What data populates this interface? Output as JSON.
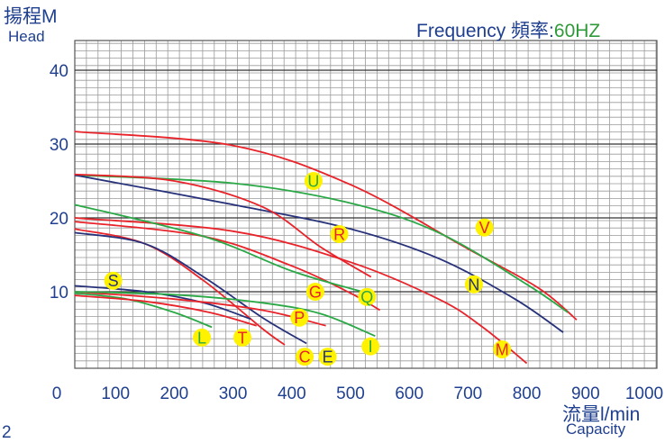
{
  "header": {
    "y_title_cn": "揚程M",
    "y_title_en": "Head",
    "frequency_label": "Frequency 頻率:",
    "frequency_value": "60HZ",
    "x_title_cn": "流量l/min",
    "x_title_en": "Capacity",
    "corner_text": "2"
  },
  "colors": {
    "red": "#e8232a",
    "green": "#2aa845",
    "navy": "#26317a",
    "axis_text": "#1f3f8f",
    "grid": "#9a9a9a",
    "badge": "#fff200"
  },
  "chart_data": {
    "type": "line",
    "xlim": [
      0,
      1000
    ],
    "ylim": [
      0,
      45
    ],
    "x_ticks": [
      0,
      100,
      200,
      300,
      400,
      500,
      600,
      700,
      800,
      900,
      1000
    ],
    "y_ticks": [
      10,
      20,
      30,
      40
    ],
    "grid": true,
    "series": [
      {
        "name": "V",
        "color": "red",
        "x": [
          30,
          300,
          500,
          700,
          820,
          885
        ],
        "y": [
          31.7,
          29.8,
          24.5,
          15.8,
          10.5,
          6.2
        ],
        "label_at": [
          728,
          18.7
        ],
        "label_color": "red"
      },
      {
        "name": "U",
        "color": "green",
        "x": [
          30,
          300,
          500,
          650,
          800,
          870
        ],
        "y": [
          25.8,
          24.7,
          22.0,
          18.0,
          11.0,
          7.2
        ],
        "label_at": [
          437,
          25.0
        ],
        "label_color": "green"
      },
      {
        "name": "N",
        "color": "navy",
        "x": [
          30,
          300,
          500,
          650,
          780,
          862
        ],
        "y": [
          25.8,
          21.8,
          18.5,
          14.5,
          9.0,
          4.5
        ],
        "label_at": [
          710,
          11.0
        ],
        "label_color": "navy"
      },
      {
        "name": "R",
        "color": "red",
        "x": [
          30,
          200,
          350,
          450,
          535
        ],
        "y": [
          25.9,
          25.0,
          21.5,
          16.0,
          12.0
        ],
        "label_at": [
          481,
          17.8
        ],
        "label_color": "red"
      },
      {
        "name": "M",
        "color": "red",
        "x": [
          30,
          300,
          500,
          650,
          725,
          800
        ],
        "y": [
          20.0,
          18.2,
          14.0,
          9.0,
          5.2,
          0.3
        ],
        "label_at": [
          758,
          2.2
        ],
        "label_color": "red"
      },
      {
        "name": "G",
        "color": "red",
        "x": [
          30,
          250,
          400,
          500,
          550
        ],
        "y": [
          19.5,
          17.5,
          13.5,
          9.8,
          7.5
        ],
        "label_at": [
          440,
          10.0
        ],
        "label_color": "red"
      },
      {
        "name": "Q",
        "color": "green",
        "x": [
          30,
          250,
          400,
          520
        ],
        "y": [
          21.8,
          17.5,
          12.8,
          10.0
        ],
        "label_at": [
          528,
          9.3
        ],
        "label_color": "green"
      },
      {
        "name": "C",
        "color": "red",
        "x": [
          30,
          150,
          250,
          350,
          388
        ],
        "y": [
          18.5,
          16.5,
          11.5,
          5.0,
          2.8
        ],
        "label_at": [
          422,
          1.2
        ],
        "label_color": "red"
      },
      {
        "name": "E",
        "color": "navy",
        "x": [
          30,
          150,
          250,
          350,
          425
        ],
        "y": [
          18.0,
          16.5,
          12.0,
          6.5,
          3.0
        ],
        "label_at": [
          461,
          1.2
        ],
        "label_color": "navy"
      },
      {
        "name": "S",
        "color": "navy",
        "x": [
          30,
          150,
          250,
          330
        ],
        "y": [
          10.8,
          10.0,
          8.5,
          6.3
        ],
        "label_at": [
          96,
          11.5
        ],
        "label_color": "navy"
      },
      {
        "name": "L",
        "color": "green",
        "x": [
          30,
          120,
          200,
          264
        ],
        "y": [
          9.8,
          9.0,
          7.2,
          5.2
        ],
        "label_at": [
          247,
          3.8
        ],
        "label_color": "green"
      },
      {
        "name": "T",
        "color": "red",
        "x": [
          30,
          150,
          260,
          340
        ],
        "y": [
          9.5,
          8.7,
          7.2,
          5.4
        ],
        "label_at": [
          316,
          3.8
        ],
        "label_color": "red"
      },
      {
        "name": "P",
        "color": "red",
        "x": [
          30,
          200,
          350,
          458
        ],
        "y": [
          10.0,
          9.0,
          7.5,
          5.4
        ],
        "label_at": [
          413,
          6.5
        ],
        "label_color": "red"
      },
      {
        "name": "I",
        "color": "green",
        "x": [
          30,
          200,
          350,
          450,
          542
        ],
        "y": [
          10.0,
          9.6,
          8.5,
          7.0,
          4.0
        ],
        "label_at": [
          534,
          2.6
        ],
        "label_color": "green"
      }
    ]
  }
}
